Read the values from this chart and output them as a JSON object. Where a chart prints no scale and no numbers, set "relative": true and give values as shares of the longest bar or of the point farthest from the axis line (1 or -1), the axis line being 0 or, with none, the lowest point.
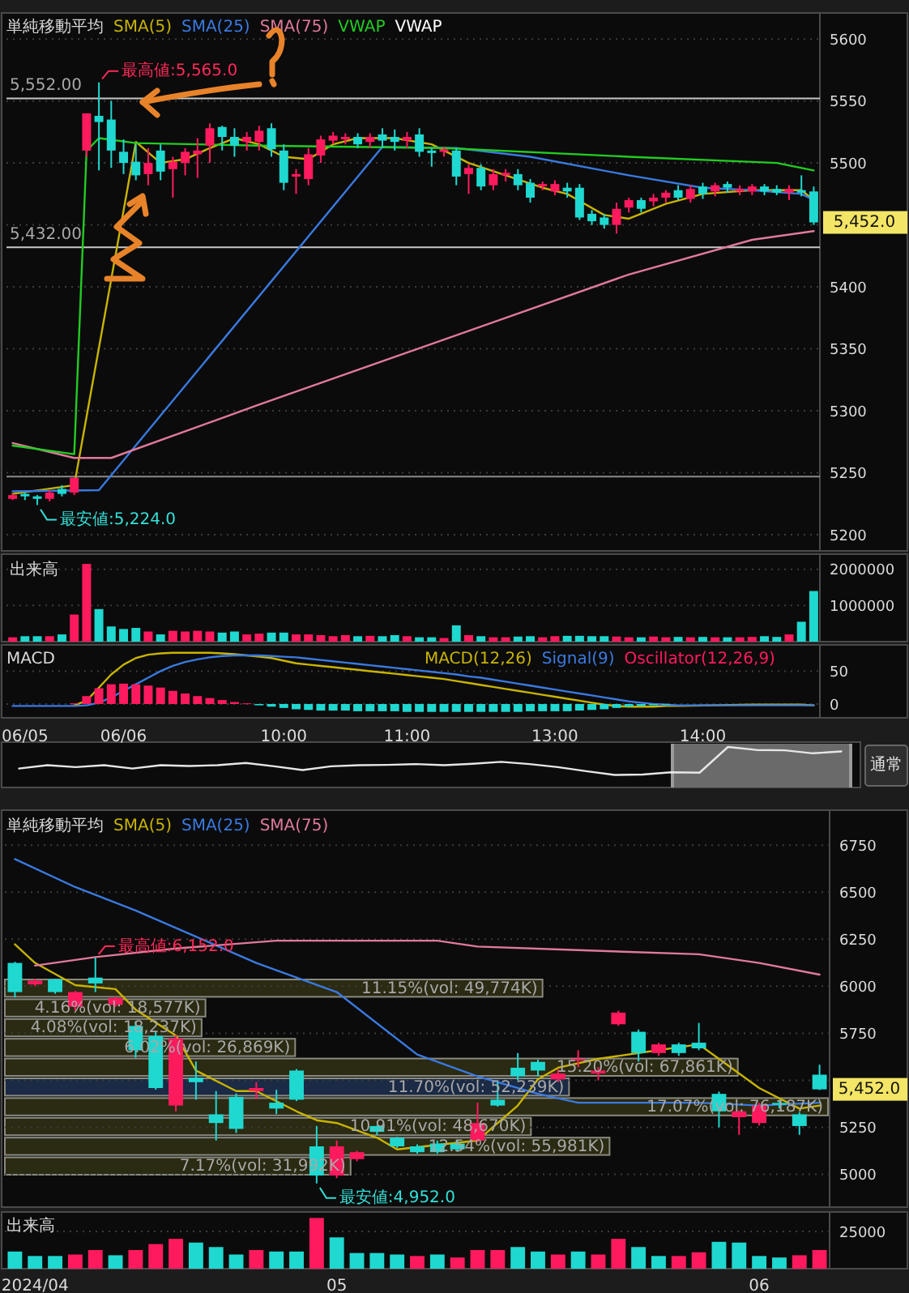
{
  "chart_data": [
    {
      "type": "candlestick",
      "title": "単純移動平均",
      "legend": "top left",
      "grid": "y",
      "tick_labels": "y",
      "categories": [
        null,
        null,
        null,
        null,
        null,
        null,
        null,
        null,
        null,
        null,
        null,
        null,
        null,
        null,
        null,
        null,
        null,
        null,
        null,
        null,
        null,
        null,
        null,
        null,
        null,
        null,
        null,
        null,
        null,
        null,
        null,
        null,
        null,
        null,
        null,
        null,
        null,
        null,
        null,
        null,
        null,
        null,
        null,
        null,
        null,
        null,
        null,
        null,
        null,
        null,
        null,
        null,
        null,
        null,
        null,
        null,
        null,
        null,
        null,
        null,
        null,
        null,
        null,
        null,
        null,
        null
      ],
      "ohlc": [
        [
          5229,
          5233,
          5228,
          5232
        ],
        [
          5233,
          5234,
          5228,
          5231
        ],
        [
          5231,
          5232,
          5224,
          5229
        ],
        [
          5229,
          5236,
          5227,
          5234
        ],
        [
          5237,
          5240,
          5231,
          5233
        ],
        [
          5234,
          5246,
          5232,
          5246
        ],
        [
          5510,
          5540,
          5505,
          5540
        ],
        [
          5538,
          5565,
          5494,
          5533
        ],
        [
          5535,
          5550,
          5496,
          5510
        ],
        [
          5509,
          5519,
          5491,
          5500
        ],
        [
          5501,
          5515,
          5486,
          5490
        ],
        [
          5491,
          5512,
          5482,
          5500
        ],
        [
          5510,
          5515,
          5486,
          5493
        ],
        [
          5495,
          5505,
          5472,
          5501
        ],
        [
          5500,
          5512,
          5490,
          5509
        ],
        [
          5507,
          5520,
          5488,
          5510
        ],
        [
          5514,
          5532,
          5500,
          5528
        ],
        [
          5529,
          5530,
          5510,
          5521
        ],
        [
          5521,
          5528,
          5505,
          5514
        ],
        [
          5517,
          5525,
          5510,
          5521
        ],
        [
          5517,
          5530,
          5510,
          5526
        ],
        [
          5528,
          5532,
          5505,
          5511
        ],
        [
          5510,
          5515,
          5478,
          5484
        ],
        [
          5489,
          5495,
          5475,
          5491
        ],
        [
          5487,
          5512,
          5482,
          5507
        ],
        [
          5506,
          5522,
          5500,
          5519
        ],
        [
          5518,
          5525,
          5515,
          5522
        ],
        [
          5519,
          5524,
          5515,
          5521
        ],
        [
          5521,
          5524,
          5512,
          5515
        ],
        [
          5517,
          5524,
          5512,
          5521
        ],
        [
          5523,
          5528,
          5512,
          5518
        ],
        [
          5521,
          5527,
          5510,
          5517
        ],
        [
          5518,
          5525,
          5512,
          5521
        ],
        [
          5523,
          5528,
          5505,
          5509
        ],
        [
          5510,
          5512,
          5497,
          5508
        ],
        [
          5509,
          5513,
          5505,
          5511
        ],
        [
          5510,
          5512,
          5482,
          5489
        ],
        [
          5491,
          5499,
          5475,
          5496
        ],
        [
          5496,
          5499,
          5478,
          5481
        ],
        [
          5482,
          5495,
          5478,
          5491
        ],
        [
          5490,
          5495,
          5485,
          5492
        ],
        [
          5491,
          5495,
          5478,
          5482
        ],
        [
          5484,
          5487,
          5468,
          5472
        ],
        [
          5481,
          5485,
          5478,
          5483
        ],
        [
          5477,
          5486,
          5474,
          5483
        ],
        [
          5480,
          5484,
          5472,
          5477
        ],
        [
          5480,
          5483,
          5454,
          5456
        ],
        [
          5459,
          5462,
          5450,
          5453
        ],
        [
          5456,
          5459,
          5447,
          5450
        ],
        [
          5450,
          5468,
          5443,
          5463
        ],
        [
          5464,
          5472,
          5460,
          5470
        ],
        [
          5470,
          5472,
          5460,
          5463
        ],
        [
          5469,
          5475,
          5465,
          5472
        ],
        [
          5472,
          5478,
          5468,
          5476
        ],
        [
          5478,
          5482,
          5470,
          5472
        ],
        [
          5471,
          5482,
          5468,
          5479
        ],
        [
          5481,
          5484,
          5471,
          5475
        ],
        [
          5477,
          5484,
          5473,
          5482
        ],
        [
          5483,
          5485,
          5476,
          5480
        ],
        [
          5477,
          5482,
          5474,
          5479
        ],
        [
          5477,
          5483,
          5474,
          5481
        ],
        [
          5481,
          5483,
          5474,
          5477
        ],
        [
          5479,
          5482,
          5474,
          5476
        ],
        [
          5476,
          5482,
          5470,
          5479
        ],
        [
          5478,
          5490,
          5473,
          5476
        ],
        [
          5477,
          5481,
          5450,
          5452
        ]
      ],
      "colors": [
        "#ff1a5e",
        "#1fd8d0",
        "#1fd8d0",
        "#ff1a5e",
        "#1fd8d0",
        "#ff1a5e",
        "#ff1a5e",
        "#1fd8d0",
        "#1fd8d0",
        "#1fd8d0",
        "#1fd8d0",
        "#ff1a5e",
        "#1fd8d0",
        "#ff1a5e",
        "#ff1a5e",
        "#ff1a5e",
        "#ff1a5e",
        "#1fd8d0",
        "#1fd8d0",
        "#ff1a5e",
        "#ff1a5e",
        "#1fd8d0",
        "#1fd8d0",
        "#ff1a5e",
        "#ff1a5e",
        "#ff1a5e",
        "#ff1a5e",
        "#ff1a5e",
        "#1fd8d0",
        "#ff1a5e",
        "#1fd8d0",
        "#1fd8d0",
        "#ff1a5e",
        "#1fd8d0",
        "#1fd8d0",
        "#ff1a5e",
        "#1fd8d0",
        "#ff1a5e",
        "#1fd8d0",
        "#ff1a5e",
        "#ff1a5e",
        "#1fd8d0",
        "#1fd8d0",
        "#ff1a5e",
        "#ff1a5e",
        "#1fd8d0",
        "#1fd8d0",
        "#1fd8d0",
        "#1fd8d0",
        "#ff1a5e",
        "#ff1a5e",
        "#1fd8d0",
        "#ff1a5e",
        "#ff1a5e",
        "#1fd8d0",
        "#ff1a5e",
        "#1fd8d0",
        "#ff1a5e",
        "#1fd8d0",
        "#ff1a5e",
        "#ff1a5e",
        "#1fd8d0",
        "#1fd8d0",
        "#ff1a5e",
        "#1fd8d0",
        "#1fd8d0"
      ],
      "series": [
        {
          "name": "SMA(5)",
          "type": "line",
          "color": "#c8b400",
          "values": [
            5233,
            null,
            null,
            null,
            null,
            5240,
            null,
            null,
            null,
            null,
            5517,
            null,
            5500,
            null,
            5503,
            null,
            5512,
            null,
            5520,
            null,
            5515,
            null,
            5505,
            null,
            5503,
            null,
            5515,
            null,
            5520,
            null,
            null,
            5520,
            null,
            null,
            5515,
            null,
            null,
            5500,
            null,
            null,
            5490,
            null,
            null,
            5480,
            null,
            5475,
            null,
            null,
            5458,
            null,
            5455,
            null,
            null,
            5467,
            null,
            null,
            5475,
            null,
            null,
            null,
            5478,
            null,
            null,
            null,
            5478,
            5470
          ]
        },
        {
          "name": "SMA(25)",
          "type": "line",
          "color": "#3a7ae0",
          "values": [
            5235,
            null,
            null,
            null,
            null,
            null,
            null,
            5236,
            null,
            null,
            null,
            null,
            null,
            null,
            null,
            null,
            null,
            null,
            null,
            null,
            null,
            null,
            null,
            null,
            null,
            null,
            null,
            null,
            null,
            null,
            5513,
            null,
            null,
            null,
            null,
            null,
            5512,
            null,
            null,
            null,
            null,
            null,
            5505,
            null,
            null,
            null,
            null,
            null,
            null,
            null,
            5490,
            null,
            null,
            null,
            null,
            null,
            5480,
            null,
            null,
            null,
            5478,
            null,
            null,
            null,
            5475,
            5470
          ]
        },
        {
          "name": "SMA(75)",
          "type": "line",
          "color": "#e07a9a",
          "values": [
            5274,
            null,
            null,
            null,
            null,
            5262,
            null,
            null,
            5262,
            null,
            null,
            null,
            null,
            null,
            null,
            null,
            null,
            null,
            null,
            null,
            5305,
            null,
            null,
            null,
            null,
            null,
            null,
            null,
            null,
            null,
            5340,
            null,
            null,
            null,
            null,
            null,
            null,
            null,
            null,
            null,
            5375,
            null,
            null,
            null,
            null,
            null,
            null,
            null,
            null,
            null,
            5410,
            null,
            null,
            null,
            null,
            null,
            null,
            null,
            null,
            null,
            5438,
            null,
            null,
            null,
            null,
            5445
          ]
        },
        {
          "name": "VWAP",
          "type": "line",
          "color": "#22cc22",
          "values": [
            5272,
            null,
            null,
            null,
            null,
            5265,
            5510,
            5520,
            null,
            null,
            5516,
            null,
            null,
            null,
            null,
            null,
            null,
            null,
            null,
            null,
            5514,
            null,
            null,
            null,
            null,
            null,
            null,
            null,
            null,
            null,
            null,
            null,
            null,
            null,
            null,
            5512,
            null,
            null,
            null,
            null,
            null,
            null,
            null,
            null,
            null,
            null,
            null,
            null,
            null,
            null,
            5505,
            null,
            null,
            null,
            null,
            null,
            null,
            null,
            null,
            null,
            null,
            null,
            5500,
            null,
            null,
            5494
          ]
        }
      ],
      "ylim": [
        5187,
        5621
      ],
      "yticks": [
        5200,
        5250,
        5300,
        5350,
        5400,
        {
          "value": 5450,
          "label": null
        },
        5500,
        5550,
        5600
      ],
      "ref_lines": [
        {
          "axis": "y",
          "value": 5552,
          "label": "5,552.00",
          "color": "#c8c8c8"
        },
        {
          "axis": "y",
          "value": 5432,
          "label": "5,432.00",
          "color": "#c8c8c8"
        },
        {
          "axis": "y",
          "value": 5247,
          "color": "#8a8a8a"
        }
      ],
      "annotations": [
        "VWAP",
        "最高値:5,565.0",
        "最安値:5,224.0",
        "5,452.0"
      ]
    },
    {
      "type": "bar",
      "title": "出来高",
      "grid": "y",
      "tick_labels": "y",
      "categories": [
        null,
        null,
        null,
        null,
        null,
        null,
        null,
        null,
        null,
        null,
        null,
        null,
        null,
        null,
        null,
        null,
        null,
        null,
        null,
        null,
        null,
        null,
        null,
        null,
        null,
        null,
        null,
        null,
        null,
        null,
        null,
        null,
        null,
        null,
        null,
        null,
        null,
        null,
        null,
        null,
        null,
        null,
        null,
        null,
        null,
        null,
        null,
        null,
        null,
        null,
        null,
        null,
        null,
        null,
        null,
        null,
        null,
        null,
        null,
        null,
        null,
        null,
        null,
        null,
        null,
        null
      ],
      "values": [
        120000,
        150000,
        150000,
        150000,
        200000,
        750000,
        2150000,
        900000,
        420000,
        350000,
        380000,
        280000,
        200000,
        300000,
        280000,
        300000,
        280000,
        250000,
        280000,
        200000,
        220000,
        250000,
        250000,
        200000,
        200000,
        180000,
        150000,
        180000,
        150000,
        160000,
        150000,
        180000,
        150000,
        120000,
        120000,
        100000,
        450000,
        180000,
        150000,
        120000,
        120000,
        140000,
        150000,
        120000,
        150000,
        160000,
        160000,
        150000,
        150000,
        140000,
        120000,
        120000,
        140000,
        120000,
        130000,
        120000,
        130000,
        120000,
        120000,
        120000,
        130000,
        150000,
        130000,
        200000,
        550000,
        1400000
      ],
      "colors": [
        "#ff1a5e",
        "#1fd8d0",
        "#1fd8d0",
        "#ff1a5e",
        "#1fd8d0",
        "#ff1a5e",
        "#ff1a5e",
        "#1fd8d0",
        "#1fd8d0",
        "#1fd8d0",
        "#1fd8d0",
        "#ff1a5e",
        "#1fd8d0",
        "#ff1a5e",
        "#ff1a5e",
        "#ff1a5e",
        "#ff1a5e",
        "#1fd8d0",
        "#1fd8d0",
        "#ff1a5e",
        "#ff1a5e",
        "#1fd8d0",
        "#1fd8d0",
        "#ff1a5e",
        "#ff1a5e",
        "#ff1a5e",
        "#ff1a5e",
        "#ff1a5e",
        "#1fd8d0",
        "#ff1a5e",
        "#1fd8d0",
        "#1fd8d0",
        "#ff1a5e",
        "#1fd8d0",
        "#1fd8d0",
        "#ff1a5e",
        "#1fd8d0",
        "#ff1a5e",
        "#1fd8d0",
        "#ff1a5e",
        "#ff1a5e",
        "#1fd8d0",
        "#1fd8d0",
        "#ff1a5e",
        "#ff1a5e",
        "#1fd8d0",
        "#1fd8d0",
        "#1fd8d0",
        "#1fd8d0",
        "#ff1a5e",
        "#ff1a5e",
        "#1fd8d0",
        "#ff1a5e",
        "#ff1a5e",
        "#1fd8d0",
        "#ff1a5e",
        "#1fd8d0",
        "#ff1a5e",
        "#1fd8d0",
        "#ff1a5e",
        "#ff1a5e",
        "#1fd8d0",
        "#1fd8d0",
        "#ff1a5e",
        "#1fd8d0",
        "#1fd8d0"
      ],
      "ylim": [
        0,
        2420000
      ],
      "yticks": [
        1000000,
        2000000
      ]
    },
    {
      "type": "line",
      "title": "MACD",
      "legend": "top right",
      "grid": "y",
      "categories": [
        null,
        "06/05",
        null,
        null,
        null,
        null,
        null,
        null,
        null,
        "06/06",
        null,
        null,
        null,
        null,
        null,
        null,
        null,
        null,
        null,
        null,
        null,
        null,
        "10:00",
        null,
        null,
        null,
        null,
        null,
        null,
        null,
        null,
        null,
        "11:00",
        null,
        null,
        null,
        null,
        null,
        null,
        null,
        null,
        null,
        null,
        null,
        "13:00",
        null,
        null,
        null,
        null,
        null,
        null,
        null,
        null,
        null,
        null,
        null,
        "14:00",
        null,
        null,
        null,
        null,
        null,
        null,
        null,
        null,
        null
      ],
      "series": [
        {
          "name": "MACD(12,26)",
          "type": "line",
          "color": "#c8b400",
          "values": [
            null,
            null,
            null,
            null,
            null,
            -2,
            5,
            25,
            45,
            60,
            70,
            75,
            77,
            78,
            78,
            78,
            78,
            77,
            76,
            74,
            72,
            70,
            66,
            62,
            60,
            58,
            56,
            54,
            52,
            50,
            48,
            46,
            44,
            42,
            40,
            38,
            35,
            32,
            29,
            26,
            23,
            20,
            17,
            14,
            11,
            8,
            5,
            2,
            -1,
            -3,
            -4,
            -4,
            -4,
            -3,
            -3,
            null,
            null,
            null,
            null,
            null,
            -1,
            -1,
            -1,
            -1,
            -1,
            -2
          ]
        },
        {
          "name": "Signal(9)",
          "type": "line",
          "color": "#3a7ae0",
          "values": [
            -3,
            -3,
            -3,
            -3,
            -3,
            -3,
            -2,
            2,
            10,
            20,
            30,
            40,
            50,
            58,
            64,
            68,
            71,
            73,
            74,
            74,
            74,
            73,
            72,
            71,
            69,
            67,
            65,
            63,
            61,
            59,
            57,
            55,
            53,
            51,
            49,
            47,
            45,
            42,
            40,
            37,
            34,
            31,
            28,
            25,
            22,
            19,
            16,
            13,
            10,
            7,
            4,
            2,
            0,
            -1,
            -2,
            -2,
            -2,
            -2,
            -2,
            -2,
            -2,
            -2,
            -2,
            -2,
            -2,
            -2
          ]
        },
        {
          "name": "Oscillator(12,26,9)",
          "type": "bar",
          "values": [
            null,
            null,
            null,
            null,
            null,
            1,
            12,
            24,
            30,
            31,
            30,
            28,
            25,
            20,
            16,
            12,
            9,
            6,
            3,
            1,
            -2,
            -4,
            -6,
            -8,
            -9,
            -10,
            -10,
            -10,
            -11,
            -11,
            -11,
            -11,
            -12,
            -12,
            -12,
            -12,
            -12,
            -12,
            -12,
            -12,
            -12,
            -12,
            -11,
            -11,
            -11,
            -11,
            -10,
            -9,
            -8,
            -6,
            -4,
            -3,
            -2,
            -1,
            null,
            null,
            null,
            null,
            null,
            null,
            null,
            null,
            null,
            null,
            null,
            null
          ],
          "colors": [
            null,
            null,
            null,
            null,
            null,
            "#ff1a5e",
            "#ff1a5e",
            "#ff1a5e",
            "#ff1a5e",
            "#ff1a5e",
            "#ff1a5e",
            "#ff1a5e",
            "#ff1a5e",
            "#ff1a5e",
            "#ff1a5e",
            "#ff1a5e",
            "#ff1a5e",
            "#ff1a5e",
            "#ff1a5e",
            "#ff1a5e",
            "#1fd8d0",
            "#1fd8d0",
            "#1fd8d0",
            "#1fd8d0",
            "#1fd8d0",
            "#1fd8d0",
            "#1fd8d0",
            "#1fd8d0",
            "#1fd8d0",
            "#1fd8d0",
            "#1fd8d0",
            "#1fd8d0",
            "#1fd8d0",
            "#1fd8d0",
            "#1fd8d0",
            "#1fd8d0",
            "#1fd8d0",
            "#1fd8d0",
            "#1fd8d0",
            "#1fd8d0",
            "#1fd8d0",
            "#1fd8d0",
            "#1fd8d0",
            "#1fd8d0",
            "#1fd8d0",
            "#1fd8d0",
            "#1fd8d0",
            "#1fd8d0",
            "#1fd8d0",
            "#1fd8d0",
            "#1fd8d0",
            "#1fd8d0",
            "#1fd8d0",
            "#1fd8d0",
            null,
            null,
            null,
            null,
            null,
            null,
            null,
            null,
            null,
            null,
            null,
            null
          ]
        }
      ],
      "ylim": [
        -21,
        90
      ],
      "yticks": [
        0,
        50
      ]
    },
    {
      "type": "line",
      "relative": true,
      "color": "#e6e6e6",
      "categories": [
        null,
        null,
        null,
        null,
        null,
        null,
        null,
        null,
        null,
        null,
        null,
        null,
        null,
        null,
        null,
        null,
        null,
        null,
        null,
        null,
        null,
        null,
        null,
        null,
        null,
        null,
        null,
        null,
        null,
        null
      ],
      "values": [
        0.42,
        0.51,
        0.46,
        0.51,
        0.42,
        0.51,
        0.49,
        0.51,
        0.57,
        0.48,
        0.38,
        0.48,
        0.51,
        0.52,
        0.54,
        0.51,
        0.55,
        0.6,
        0.54,
        0.46,
        0.35,
        0.25,
        0.26,
        0.32,
        0.31,
        1,
        0.92,
        0.91,
        0.83,
        0.88
      ],
      "annotations": [
        "通常"
      ]
    },
    {
      "type": "candlestick",
      "title": "単純移動平均",
      "legend": "top left",
      "grid": "y",
      "tick_labels": "y",
      "categories": [
        null,
        null,
        null,
        null,
        null,
        null,
        null,
        null,
        null,
        null,
        null,
        null,
        null,
        null,
        null,
        null,
        null,
        null,
        null,
        null,
        null,
        null,
        null,
        null,
        null,
        null,
        null,
        null,
        null,
        null,
        null,
        null,
        null,
        null,
        null,
        null,
        null,
        null,
        null,
        null,
        null
      ],
      "ohlc": [
        [
          6124,
          6130,
          5940,
          5969
        ],
        [
          6010,
          6040,
          6000,
          6030
        ],
        [
          6037,
          6040,
          5960,
          5969
        ],
        [
          5891,
          5975,
          5870,
          5969
        ],
        [
          6046,
          6152,
          5969,
          6015
        ],
        [
          5901,
          5945,
          5890,
          5938
        ],
        [
          5789,
          5814,
          5620,
          5659
        ],
        [
          5736,
          5760,
          5450,
          5459
        ],
        [
          5366,
          5740,
          5335,
          5722
        ],
        [
          5515,
          5600,
          5397,
          5490
        ],
        [
          5319,
          5443,
          5180,
          5273
        ],
        [
          5412,
          5430,
          5220,
          5242
        ],
        [
          5443,
          5490,
          5400,
          5459
        ],
        [
          5381,
          5450,
          5320,
          5350
        ],
        [
          5552,
          5560,
          5390,
          5397
        ],
        [
          5149,
          5257,
          4952,
          4994
        ],
        [
          4994,
          5180,
          4980,
          5149
        ],
        [
          5081,
          5125,
          5070,
          5118
        ],
        [
          5257,
          5260,
          5210,
          5226
        ],
        [
          5195,
          5200,
          5140,
          5149
        ],
        [
          5149,
          5160,
          5110,
          5118
        ],
        [
          5164,
          5180,
          5110,
          5118
        ],
        [
          5164,
          5180,
          5120,
          5133
        ],
        [
          5180,
          5381,
          5170,
          5273
        ],
        [
          5397,
          5490,
          5360,
          5366
        ],
        [
          5567,
          5645,
          5500,
          5521
        ],
        [
          5598,
          5610,
          5520,
          5552
        ],
        [
          5505,
          5560,
          5490,
          5536
        ],
        [
          5605,
          5660,
          5570,
          5614
        ],
        [
          5536,
          5570,
          5500,
          5552
        ],
        [
          5798,
          5870,
          5790,
          5860
        ],
        [
          5758,
          5770,
          5600,
          5645
        ],
        [
          5645,
          5700,
          5630,
          5691
        ],
        [
          5691,
          5700,
          5630,
          5645
        ],
        [
          5700,
          5805,
          5660,
          5670
        ],
        [
          5428,
          5440,
          5250,
          5335
        ],
        [
          5304,
          5340,
          5210,
          5335
        ],
        [
          5273,
          5380,
          5260,
          5366
        ],
        [
          5380,
          5390,
          5350,
          5370
        ],
        [
          5319,
          5330,
          5210,
          5257
        ],
        [
          5530,
          5583,
          5448,
          5452
        ]
      ],
      "colors": [
        "#1fd8d0",
        "#ff1a5e",
        "#1fd8d0",
        "#ff1a5e",
        "#1fd8d0",
        "#ff1a5e",
        "#1fd8d0",
        "#1fd8d0",
        "#ff1a5e",
        "#1fd8d0",
        "#1fd8d0",
        "#1fd8d0",
        "#ff1a5e",
        "#1fd8d0",
        "#1fd8d0",
        "#1fd8d0",
        "#ff1a5e",
        "#ff1a5e",
        "#1fd8d0",
        "#1fd8d0",
        "#1fd8d0",
        "#1fd8d0",
        "#1fd8d0",
        "#ff1a5e",
        "#1fd8d0",
        "#1fd8d0",
        "#1fd8d0",
        "#ff1a5e",
        "#ff1a5e",
        "#ff1a5e",
        "#ff1a5e",
        "#1fd8d0",
        "#ff1a5e",
        "#1fd8d0",
        "#1fd8d0",
        "#1fd8d0",
        "#ff1a5e",
        "#ff1a5e",
        "#1fd8d0",
        "#1fd8d0",
        "#1fd8d0"
      ],
      "series": [
        {
          "name": "SMA(5)",
          "type": "line",
          "color": "#c8b400",
          "values": [
            6223,
            6124,
            null,
            6006,
            null,
            5985,
            5876,
            null,
            5738,
            5552,
            null,
            5443,
            5443,
            null,
            5335,
            5288,
            5273,
            null,
            5195,
            5133,
            null,
            null,
            null,
            5180,
            5273,
            5366,
            5505,
            5567,
            null,
            5614,
            null,
            5645,
            null,
            null,
            5691,
            5614,
            null,
            5459,
            null,
            5350,
            5366
          ]
        },
        {
          "name": "SMA(25)",
          "type": "line",
          "color": "#3a7ae0",
          "values": [
            6676,
            null,
            null,
            6527,
            null,
            null,
            6403,
            null,
            null,
            6264,
            null,
            null,
            6124,
            null,
            null,
            null,
            5969,
            null,
            null,
            null,
            5637,
            null,
            null,
            5521,
            null,
            null,
            5428,
            null,
            5381,
            null,
            null,
            5381,
            null,
            null,
            5381,
            null,
            null,
            5366,
            null,
            null,
            5381
          ]
        },
        {
          "name": "SMA(75)",
          "type": "line",
          "color": "#e07a9a",
          "values": [
            null,
            6110,
            null,
            null,
            6155,
            null,
            null,
            null,
            6201,
            null,
            null,
            null,
            null,
            6242,
            null,
            null,
            null,
            null,
            null,
            null,
            null,
            6242,
            null,
            6211,
            null,
            null,
            null,
            null,
            6192,
            null,
            null,
            null,
            null,
            null,
            6170,
            null,
            null,
            6124,
            null,
            null,
            6062
          ]
        }
      ],
      "ylim": [
        4826,
        6936
      ],
      "yticks": [
        5000,
        5250,
        {
          "value": 5500,
          "label": null
        },
        5750,
        6000,
        6250,
        6500,
        6750
      ],
      "annotations": [
        "最高値:6,152.0",
        "最安値:4,952.0",
        "5,452.0"
      ]
    },
    {
      "type": "bar",
      "orientation": "horizontal",
      "categories": [
        null,
        null,
        null,
        null,
        null,
        null,
        null,
        null,
        null,
        null
      ],
      "values": [
        11.15,
        4.16,
        4.08,
        6.02,
        15.2,
        11.7,
        17.07,
        10.91,
        12.54,
        7.17
      ],
      "colors": [
        "#2b2a12",
        "#2b2a12",
        "#2b2a12",
        "#2b2a12",
        "#2b2a12",
        "#1b2a45",
        "#2b2a12",
        "#2b2a12",
        "#2b2a12",
        "#2b2a12"
      ],
      "value_labels": [
        "11.15%(vol: 49,774K)",
        "4.16%(vol: 18,577K)",
        "4.08%(vol: 18,237K)",
        "6.02%(vol: 26,869K)",
        "15.20%(vol: 67,861K)",
        "11.70%(vol: 52,239K)",
        "17.07%(vol: 76,187K)",
        "10.91%(vol: 48,670K)",
        "12.54%(vol: 55,981K)",
        "7.17%(vol: 31,992K)"
      ]
    },
    {
      "type": "bar",
      "title": "出来高",
      "grid": "y",
      "categories": [
        null,
        "2024/04",
        null,
        null,
        null,
        null,
        null,
        null,
        null,
        null,
        null,
        null,
        null,
        null,
        null,
        null,
        "05",
        null,
        null,
        null,
        null,
        null,
        null,
        null,
        null,
        null,
        null,
        null,
        null,
        null,
        null,
        null,
        null,
        null,
        null,
        null,
        null,
        "06",
        null,
        null,
        null
      ],
      "values": [
        11500,
        8500,
        8500,
        9500,
        12500,
        9000,
        12500,
        16500,
        20000,
        17500,
        14500,
        9500,
        12500,
        11500,
        11500,
        34000,
        21000,
        10500,
        10500,
        9500,
        8500,
        9500,
        7500,
        12500,
        12500,
        14500,
        11500,
        9500,
        11500,
        9500,
        20000,
        14500,
        8500,
        8500,
        11000,
        18000,
        17500,
        8500,
        7500,
        9000,
        12500
      ],
      "colors": [
        "#1fd8d0",
        "#1fd8d0",
        "#1fd8d0",
        "#ff1a5e",
        "#ff1a5e",
        "#1fd8d0",
        "#ff1a5e",
        "#ff1a5e",
        "#ff1a5e",
        "#1fd8d0",
        "#1fd8d0",
        "#1fd8d0",
        "#ff1a5e",
        "#1fd8d0",
        "#1fd8d0",
        "#ff1a5e",
        "#1fd8d0",
        "#1fd8d0",
        "#1fd8d0",
        "#1fd8d0",
        "#ff1a5e",
        "#1fd8d0",
        "#ff1a5e",
        "#ff1a5e",
        "#ff1a5e",
        "#1fd8d0",
        "#1fd8d0",
        "#ff1a5e",
        "#1fd8d0",
        "#ff1a5e",
        "#ff1a5e",
        "#1fd8d0",
        "#1fd8d0",
        "#ff1a5e",
        "#ff1a5e",
        "#1fd8d0",
        "#1fd8d0",
        "#1fd8d0",
        "#1fd8d0",
        "#ff1a5e",
        "#ff1a5e"
      ],
      "ylim": [
        0,
        38000
      ],
      "yticks": [
        25000
      ]
    }
  ]
}
